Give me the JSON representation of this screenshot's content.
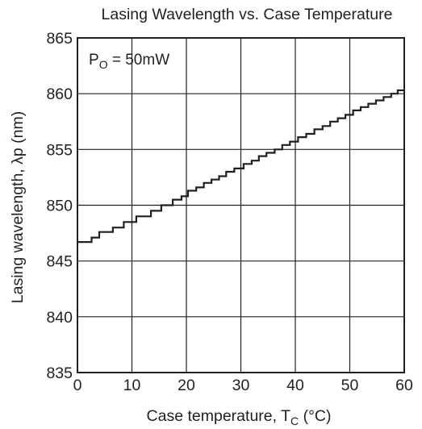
{
  "chart_data": {
    "type": "line",
    "title": "Lasing Wavelength vs. Case Temperature",
    "annotation": {
      "main": "P",
      "sub": "O",
      "rest": " = 50mW"
    },
    "xlabel": {
      "main": "Case temperature,  T",
      "sub": "C",
      "rest": "  (°C)"
    },
    "ylabel": "Lasing wavelength,  λp  (nm)",
    "xlim": [
      0,
      60
    ],
    "ylim": [
      835,
      865
    ],
    "x_ticks": [
      0,
      10,
      20,
      30,
      40,
      50,
      60
    ],
    "y_ticks": [
      835,
      840,
      845,
      850,
      855,
      860,
      865
    ],
    "grid": true,
    "line_style": "step",
    "series": [
      {
        "points": [
          [
            0,
            846.7
          ],
          [
            2.6,
            846.7
          ],
          [
            2.6,
            847.1
          ],
          [
            4.0,
            847.1
          ],
          [
            4.0,
            847.6
          ],
          [
            6.5,
            847.6
          ],
          [
            6.5,
            848.0
          ],
          [
            8.5,
            848.0
          ],
          [
            8.5,
            848.5
          ],
          [
            10.8,
            848.5
          ],
          [
            10.8,
            849.0
          ],
          [
            13.5,
            849.0
          ],
          [
            13.5,
            849.5
          ],
          [
            15.4,
            849.5
          ],
          [
            15.4,
            850.0
          ],
          [
            17.5,
            850.0
          ],
          [
            17.5,
            850.5
          ],
          [
            19.1,
            850.5
          ],
          [
            19.1,
            850.8
          ],
          [
            20.3,
            850.8
          ],
          [
            20.3,
            851.3
          ],
          [
            21.8,
            851.3
          ],
          [
            21.8,
            851.6
          ],
          [
            23.2,
            851.6
          ],
          [
            23.2,
            852.0
          ],
          [
            24.6,
            852.0
          ],
          [
            24.6,
            852.3
          ],
          [
            26.0,
            852.3
          ],
          [
            26.0,
            852.6
          ],
          [
            27.3,
            852.6
          ],
          [
            27.3,
            853.0
          ],
          [
            28.8,
            853.0
          ],
          [
            28.8,
            853.3
          ],
          [
            30.5,
            853.3
          ],
          [
            30.5,
            853.7
          ],
          [
            32.0,
            853.7
          ],
          [
            32.0,
            854.0
          ],
          [
            33.3,
            854.0
          ],
          [
            33.3,
            854.4
          ],
          [
            34.7,
            854.4
          ],
          [
            34.7,
            854.7
          ],
          [
            36.2,
            854.7
          ],
          [
            36.2,
            855.0
          ],
          [
            37.6,
            855.0
          ],
          [
            37.6,
            855.4
          ],
          [
            39.0,
            855.4
          ],
          [
            39.0,
            855.7
          ],
          [
            40.5,
            855.7
          ],
          [
            40.5,
            856.1
          ],
          [
            42.0,
            856.1
          ],
          [
            42.0,
            856.4
          ],
          [
            43.5,
            856.4
          ],
          [
            43.5,
            856.8
          ],
          [
            45.0,
            856.8
          ],
          [
            45.0,
            857.1
          ],
          [
            46.4,
            857.1
          ],
          [
            46.4,
            857.5
          ],
          [
            47.8,
            857.5
          ],
          [
            47.8,
            857.8
          ],
          [
            49.2,
            857.8
          ],
          [
            49.2,
            858.1
          ],
          [
            50.6,
            858.1
          ],
          [
            50.6,
            858.5
          ],
          [
            52.0,
            858.5
          ],
          [
            52.0,
            858.8
          ],
          [
            53.4,
            858.8
          ],
          [
            53.4,
            859.1
          ],
          [
            54.8,
            859.1
          ],
          [
            54.8,
            859.4
          ],
          [
            56.2,
            859.4
          ],
          [
            56.2,
            859.7
          ],
          [
            57.6,
            859.7
          ],
          [
            57.6,
            860.0
          ],
          [
            58.8,
            860.0
          ],
          [
            58.8,
            860.3
          ],
          [
            60.0,
            860.3
          ]
        ]
      }
    ]
  }
}
